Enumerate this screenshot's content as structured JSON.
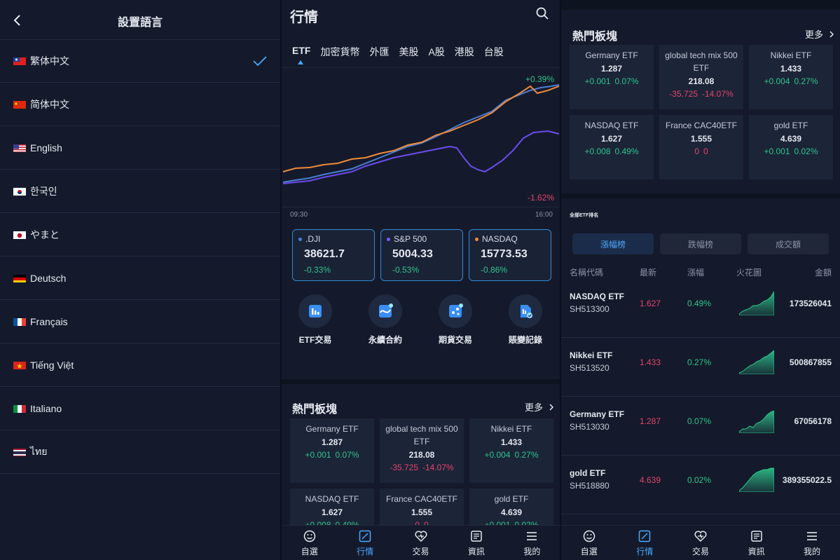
{
  "language_screen": {
    "title": "設置語言",
    "languages": [
      {
        "label": "繁体中文",
        "selected": true,
        "flag": "tw"
      },
      {
        "label": "简体中文",
        "selected": false,
        "flag": "cn"
      },
      {
        "label": "English",
        "selected": false,
        "flag": "us"
      },
      {
        "label": "한국인",
        "selected": false,
        "flag": "kr"
      },
      {
        "label": "やまと",
        "selected": false,
        "flag": "jp"
      },
      {
        "label": "Deutsch",
        "selected": false,
        "flag": "de"
      },
      {
        "label": "Français",
        "selected": false,
        "flag": "fr"
      },
      {
        "label": "Tiếng Việt",
        "selected": false,
        "flag": "vn"
      },
      {
        "label": "Italiano",
        "selected": false,
        "flag": "it"
      },
      {
        "label": "ไทย",
        "selected": false,
        "flag": "th"
      }
    ]
  },
  "market_screen": {
    "title": "行情",
    "tabs": [
      "ETF",
      "加密貨幣",
      "外匯",
      "美股",
      "A股",
      "港股",
      "台股"
    ],
    "active_tab": "ETF",
    "chart": {
      "high_label": "+0.39%",
      "low_label": "-1.62%",
      "time_start": "09:30",
      "time_end": "16:00"
    },
    "indices": [
      {
        "name": ".DJI",
        "value": "38621.7",
        "change": "-0.33%",
        "dot": "#4a7fd6"
      },
      {
        "name": "S&P 500",
        "value": "5004.33",
        "change": "-0.53%",
        "dot": "#7a5af8"
      },
      {
        "name": "NASDAQ",
        "value": "15773.53",
        "change": "-0.86%",
        "dot": "#f08a3c"
      }
    ],
    "features": [
      {
        "label": "ETF交易",
        "icon": "bar-chart-icon"
      },
      {
        "label": "永續合約",
        "icon": "wave-chart-icon"
      },
      {
        "label": "期貨交易",
        "icon": "dice-icon"
      },
      {
        "label": "賬變記錄",
        "icon": "document-check-icon"
      }
    ],
    "hot_title": "熱門板塊",
    "more_label": "更多",
    "hot_cards": [
      {
        "name": "Germany ETF",
        "price": "1.287",
        "delta": "+0.001",
        "pct": "0.07%",
        "up": true
      },
      {
        "name": "global tech mix 500 ETF",
        "price": "218.08",
        "delta": "-35.725",
        "pct": "-14.07%",
        "up": false
      },
      {
        "name": "Nikkei ETF",
        "price": "1.433",
        "delta": "+0.004",
        "pct": "0.27%",
        "up": true
      },
      {
        "name": "NASDAQ ETF",
        "price": "1.627",
        "delta": "+0.008",
        "pct": "0.49%",
        "up": true
      },
      {
        "name": "France CAC40ETF",
        "price": "1.555",
        "delta": "0",
        "pct": "0",
        "up": false
      },
      {
        "name": "gold ETF",
        "price": "4.639",
        "delta": "+0.001",
        "pct": "0.02%",
        "up": true
      }
    ]
  },
  "rank_screen": {
    "hot_title": "熱門板塊",
    "more_label": "更多",
    "section_label": "全部ETF排名",
    "rank_tabs": [
      "漲幅榜",
      "跌幅榜",
      "成交額"
    ],
    "columns": [
      "名稱代碼",
      "最新",
      "漲幅",
      "火花圖",
      "金額"
    ],
    "rows": [
      {
        "name": "NASDAQ ETF",
        "code": "SH513300",
        "last": "1.627",
        "change": "0.49%",
        "amount": "173526041"
      },
      {
        "name": "Nikkei ETF",
        "code": "SH513520",
        "last": "1.433",
        "change": "0.27%",
        "amount": "500867855"
      },
      {
        "name": "Germany ETF",
        "code": "SH513030",
        "last": "1.287",
        "change": "0.07%",
        "amount": "67056178"
      },
      {
        "name": "gold ETF",
        "code": "SH518880",
        "last": "4.639",
        "change": "0.02%",
        "amount": "389355022.5"
      }
    ]
  },
  "bottom_nav": [
    {
      "label": "自選",
      "icon": "smile-icon"
    },
    {
      "label": "行情",
      "icon": "trend-icon"
    },
    {
      "label": "交易",
      "icon": "heart-icon"
    },
    {
      "label": "資訊",
      "icon": "news-icon"
    },
    {
      "label": "我的",
      "icon": "menu-icon"
    }
  ],
  "bottom_nav_active": "行情",
  "colors": {
    "accent": "#4aa8ff",
    "up": "#2ec48b",
    "down": "#e5426b",
    "background": "#141a2b"
  }
}
